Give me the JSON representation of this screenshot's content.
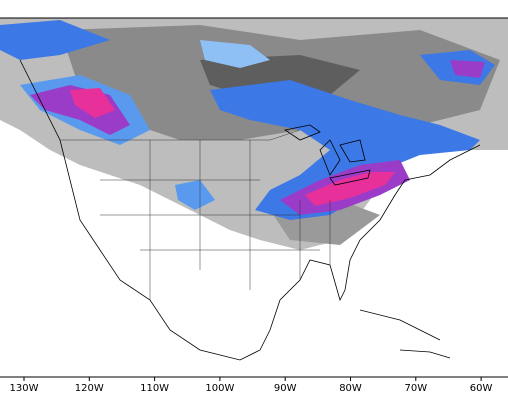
{
  "axis": {
    "longitude_labels": [
      "130W",
      "120W",
      "110W",
      "100W",
      "90W",
      "80W",
      "70W",
      "60W"
    ]
  }
}
